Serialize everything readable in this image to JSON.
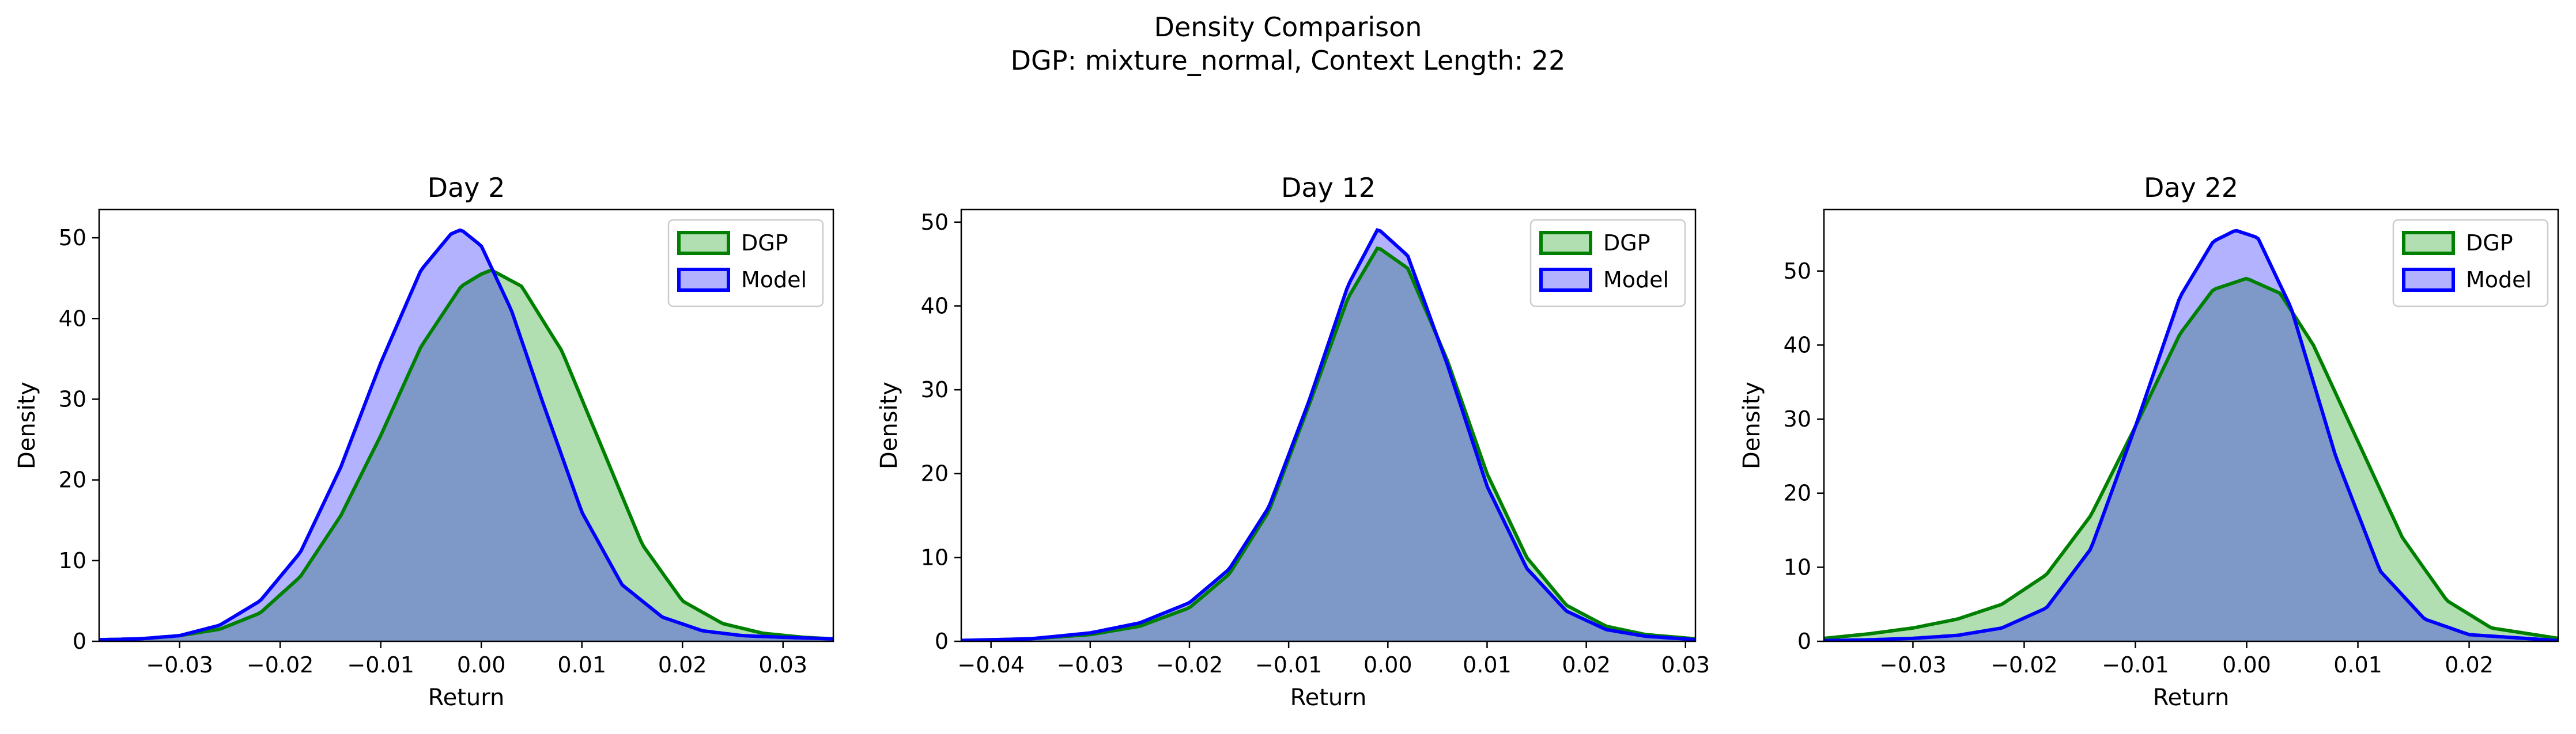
{
  "figure": {
    "title_line1": "Density Comparison",
    "title_line2": "DGP: mixture_normal, Context Length: 22"
  },
  "colors": {
    "dgp_fill": "#b2dfb2",
    "dgp_line": "#008000",
    "model_fill": "#b2b2ff",
    "model_line": "#0000ff",
    "overlap_fill": "#7e98c8",
    "overlap_line": "#1a5a5a"
  },
  "chart_data": [
    {
      "type": "area",
      "title": "Day 2",
      "xlabel": "Return",
      "ylabel": "Density",
      "xlim": [
        -0.038,
        0.035
      ],
      "ylim": [
        0,
        53.5
      ],
      "xticks": [
        -0.03,
        -0.02,
        -0.01,
        0.0,
        0.01,
        0.02,
        0.03
      ],
      "xtick_labels": [
        "−0.03",
        "−0.02",
        "−0.01",
        "0.00",
        "0.01",
        "0.02",
        "0.03"
      ],
      "yticks": [
        0,
        10,
        20,
        30,
        40,
        50
      ],
      "legend": "top-right",
      "series": [
        {
          "name": "DGP",
          "x": [
            -0.038,
            -0.034,
            -0.03,
            -0.026,
            -0.022,
            -0.018,
            -0.014,
            -0.01,
            -0.006,
            -0.002,
            0.0,
            0.001,
            0.004,
            0.008,
            0.012,
            0.016,
            0.02,
            0.024,
            0.028,
            0.032,
            0.035
          ],
          "y": [
            0.2,
            0.3,
            0.7,
            1.5,
            3.5,
            8.0,
            15.5,
            25.5,
            36.5,
            44.0,
            45.5,
            46.0,
            44.0,
            36.0,
            24.0,
            12.0,
            5.0,
            2.2,
            1.0,
            0.5,
            0.3
          ]
        },
        {
          "name": "Model",
          "x": [
            -0.038,
            -0.034,
            -0.03,
            -0.026,
            -0.022,
            -0.018,
            -0.014,
            -0.01,
            -0.006,
            -0.003,
            -0.002,
            0.0,
            0.003,
            0.006,
            0.01,
            0.014,
            0.018,
            0.022,
            0.026,
            0.03,
            0.035
          ],
          "y": [
            0.2,
            0.3,
            0.7,
            2.0,
            5.0,
            11.0,
            21.5,
            34.5,
            46.0,
            50.5,
            51.0,
            49.0,
            41.0,
            30.0,
            16.0,
            7.0,
            3.0,
            1.3,
            0.7,
            0.5,
            0.3
          ]
        }
      ]
    },
    {
      "type": "area",
      "title": "Day 12",
      "xlabel": "Return",
      "ylabel": "Density",
      "xlim": [
        -0.043,
        0.031
      ],
      "ylim": [
        0,
        51.5
      ],
      "xticks": [
        -0.04,
        -0.03,
        -0.02,
        -0.01,
        0.0,
        0.01,
        0.02,
        0.03
      ],
      "xtick_labels": [
        "−0.04",
        "−0.03",
        "−0.02",
        "−0.01",
        "0.00",
        "0.01",
        "0.02",
        "0.03"
      ],
      "yticks": [
        0,
        10,
        20,
        30,
        40,
        50
      ],
      "legend": "top-right",
      "series": [
        {
          "name": "DGP",
          "x": [
            -0.043,
            -0.036,
            -0.03,
            -0.025,
            -0.02,
            -0.016,
            -0.012,
            -0.008,
            -0.004,
            -0.001,
            0.002,
            0.006,
            0.01,
            0.014,
            0.018,
            0.022,
            0.026,
            0.031
          ],
          "y": [
            0.1,
            0.3,
            0.8,
            1.8,
            4.0,
            8.0,
            15.5,
            28.0,
            41.0,
            47.0,
            44.5,
            33.5,
            20.0,
            10.0,
            4.3,
            1.8,
            0.8,
            0.3
          ]
        },
        {
          "name": "Model",
          "x": [
            -0.043,
            -0.036,
            -0.03,
            -0.025,
            -0.02,
            -0.016,
            -0.012,
            -0.008,
            -0.004,
            -0.001,
            0.002,
            0.006,
            0.01,
            0.014,
            0.018,
            0.022,
            0.026,
            0.031
          ],
          "y": [
            0.1,
            0.3,
            1.0,
            2.2,
            4.6,
            8.6,
            16.0,
            28.5,
            42.5,
            49.2,
            46.0,
            33.0,
            18.5,
            8.7,
            3.6,
            1.4,
            0.6,
            0.2
          ]
        }
      ]
    },
    {
      "type": "area",
      "title": "Day 22",
      "xlabel": "Return",
      "ylabel": "Density",
      "xlim": [
        -0.038,
        0.028
      ],
      "ylim": [
        0,
        58.3
      ],
      "xticks": [
        -0.03,
        -0.02,
        -0.01,
        0.0,
        0.01,
        0.02
      ],
      "xtick_labels": [
        "−0.03",
        "−0.02",
        "−0.01",
        "0.00",
        "0.01",
        "0.02"
      ],
      "yticks": [
        0,
        10,
        20,
        30,
        40,
        50
      ],
      "legend": "top-right",
      "series": [
        {
          "name": "DGP",
          "x": [
            -0.038,
            -0.034,
            -0.03,
            -0.026,
            -0.022,
            -0.018,
            -0.014,
            -0.01,
            -0.006,
            -0.003,
            0.0,
            0.003,
            0.006,
            0.01,
            0.014,
            0.018,
            0.022,
            0.028
          ],
          "y": [
            0.4,
            1.0,
            1.8,
            3.0,
            5.0,
            9.0,
            17.0,
            29.0,
            41.5,
            47.5,
            49.0,
            47.0,
            40.0,
            27.0,
            14.0,
            5.5,
            1.8,
            0.4
          ]
        },
        {
          "name": "Model",
          "x": [
            -0.038,
            -0.034,
            -0.03,
            -0.026,
            -0.022,
            -0.018,
            -0.014,
            -0.01,
            -0.006,
            -0.003,
            -0.001,
            0.001,
            0.004,
            0.008,
            0.012,
            0.016,
            0.02,
            0.028
          ],
          "y": [
            0.1,
            0.2,
            0.4,
            0.8,
            1.8,
            4.5,
            12.5,
            29.0,
            46.5,
            54.0,
            55.5,
            54.5,
            45.0,
            25.0,
            9.5,
            3.0,
            0.9,
            0.1
          ]
        }
      ]
    }
  ]
}
